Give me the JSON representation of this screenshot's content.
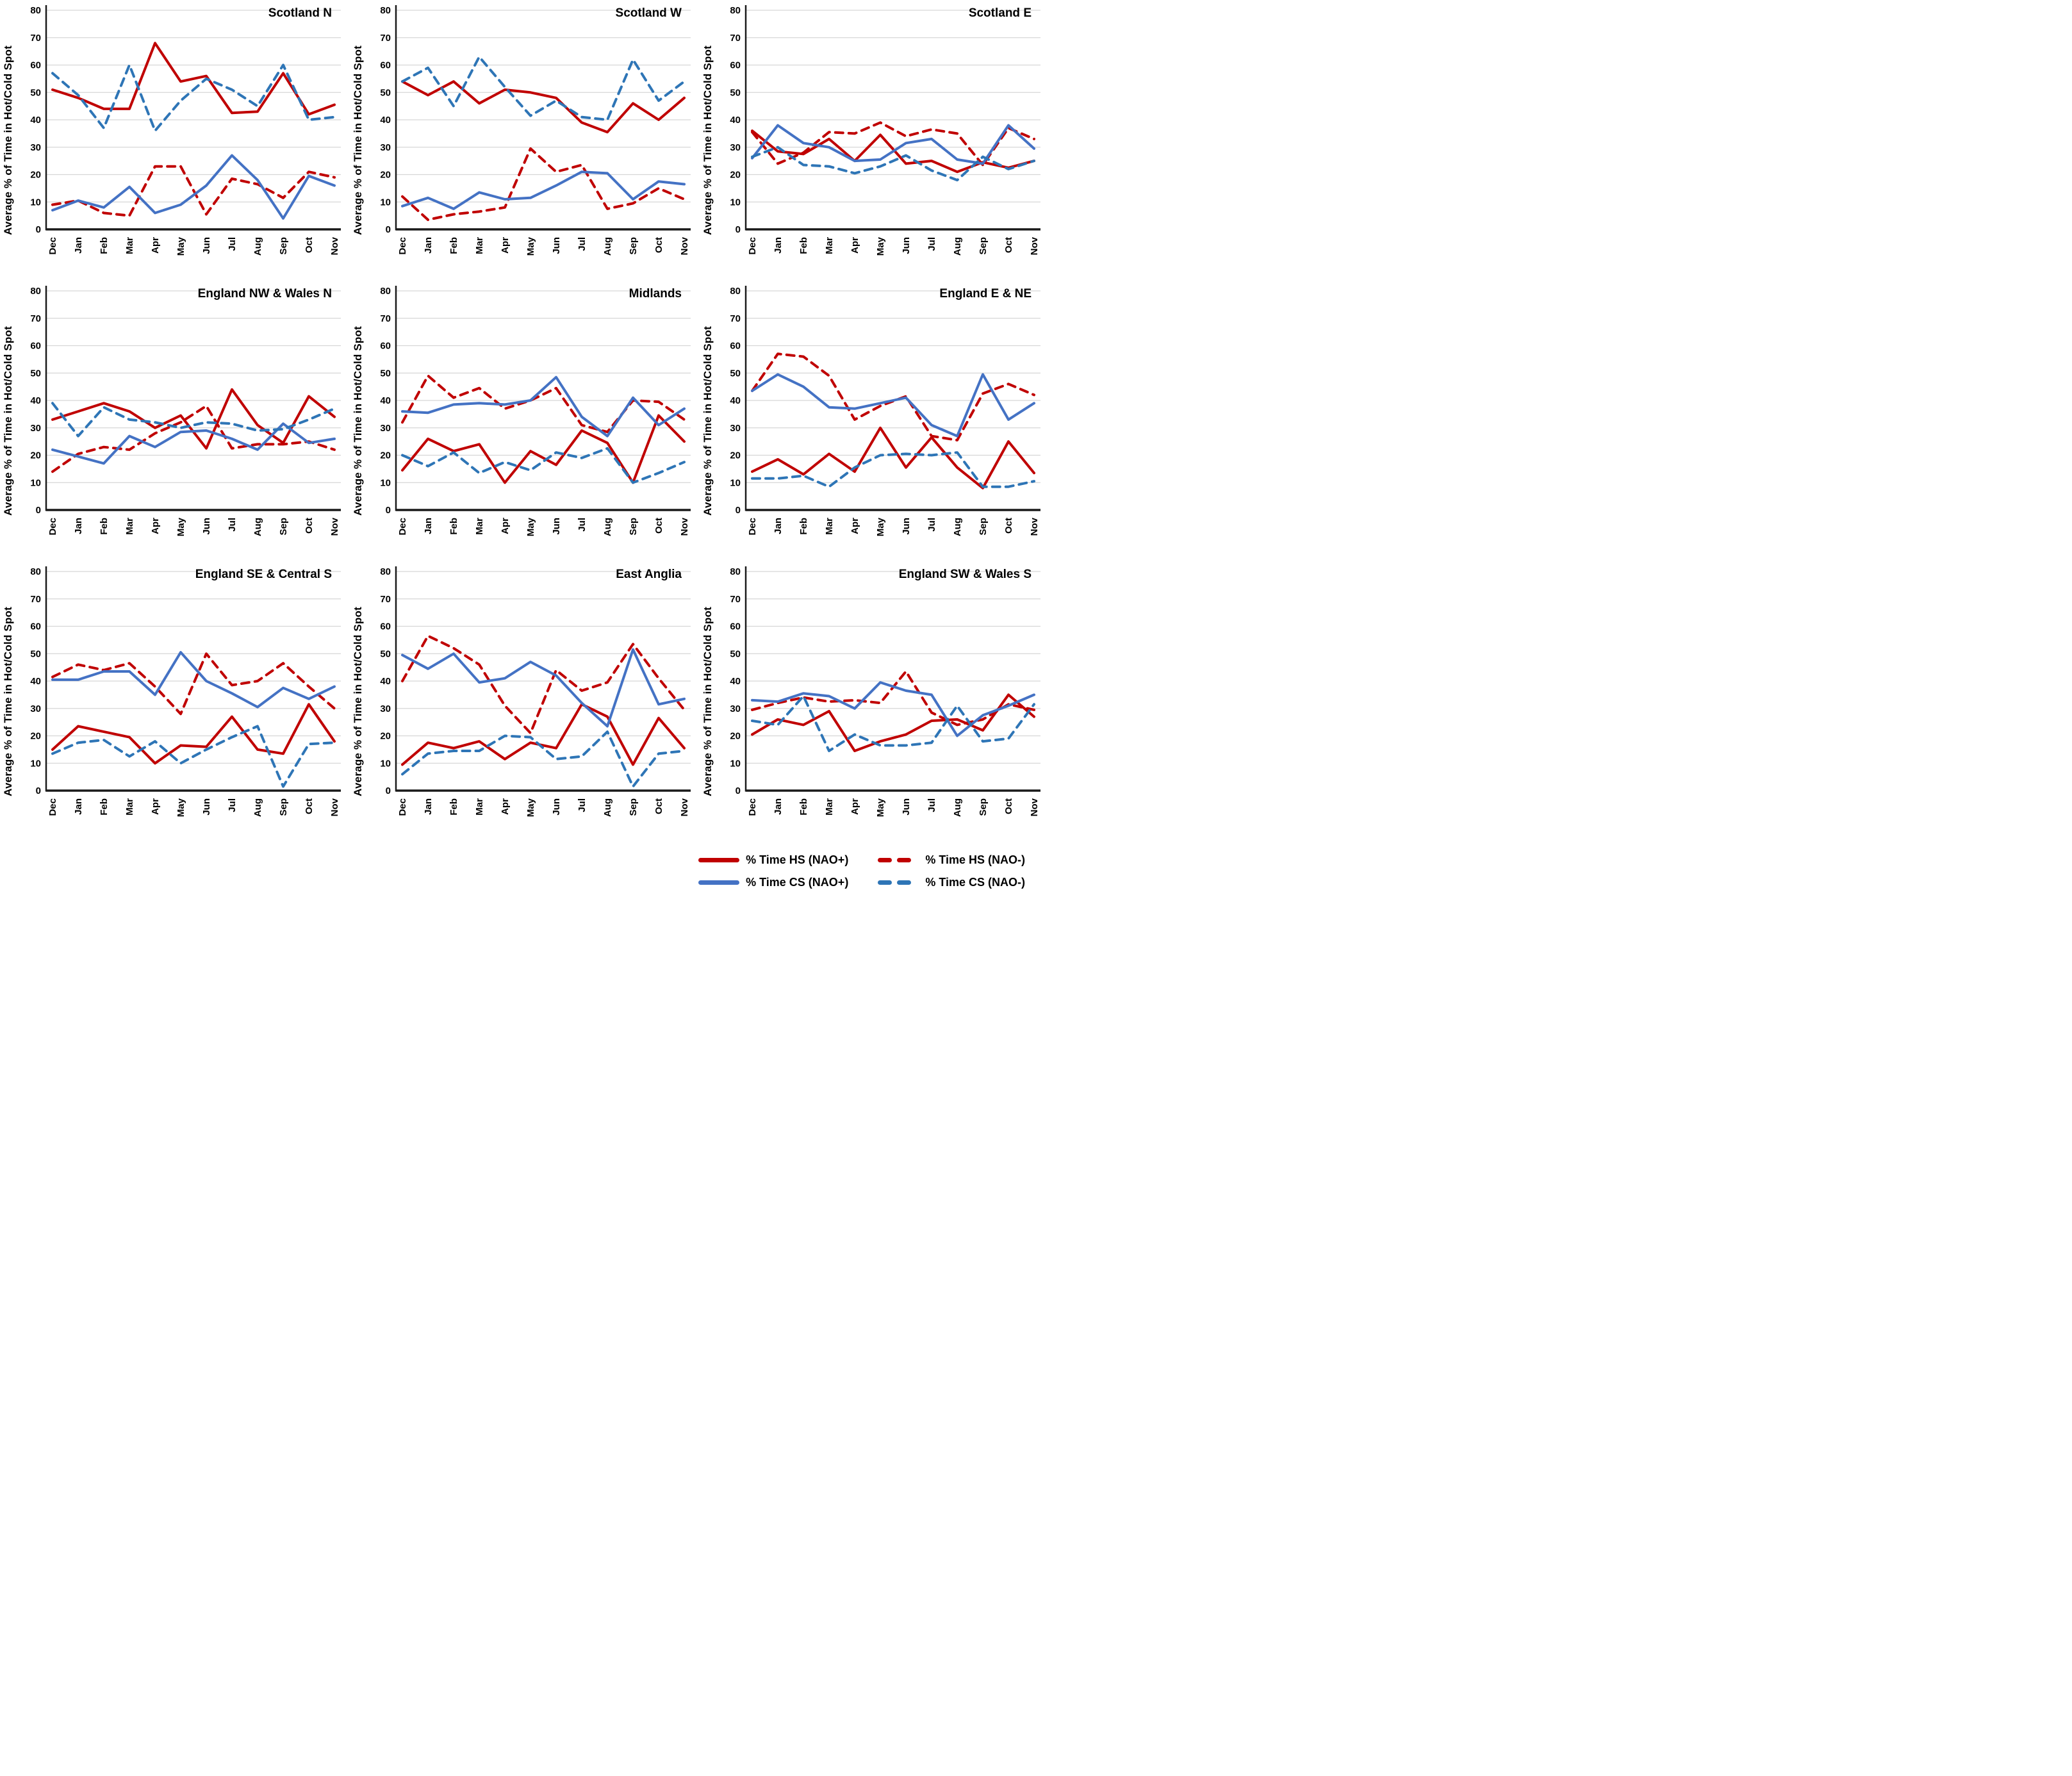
{
  "shared": {
    "y_axis_label": "Average % of Time in Hot/Cold Spot"
  },
  "colors": {
    "hs_solid": "#C00000",
    "hs_dashed": "#C00000",
    "cs_solid": "#4472C4",
    "cs_dashed": "#2E75B6",
    "gridline": "#D6D6D6",
    "axis": "#1a1a1a",
    "text": "#000000"
  },
  "legend": {
    "position": "bottom-right",
    "items": [
      {
        "id": "hs-nao-plus",
        "label": "% Time HS (NAO+)",
        "color": "#C00000",
        "dash": false
      },
      {
        "id": "hs-nao-minus",
        "label": "% Time HS (NAO-)",
        "color": "#C00000",
        "dash": true
      },
      {
        "id": "cs-nao-plus",
        "label": "% Time CS (NAO+)",
        "color": "#4472C4",
        "dash": false
      },
      {
        "id": "cs-nao-minus",
        "label": "% Time CS (NAO-)",
        "color": "#2E75B6",
        "dash": true
      }
    ]
  },
  "axis": {
    "y_min": 0,
    "y_max": 80,
    "y_tick_step": 10,
    "y_ticks": [
      0,
      10,
      20,
      30,
      40,
      50,
      60,
      70,
      80
    ],
    "grid": "on",
    "x_categories": [
      "Dec",
      "Jan",
      "Feb",
      "Mar",
      "Apr",
      "May",
      "Jun",
      "Jul",
      "Aug",
      "Sep",
      "Oct",
      "Nov"
    ]
  },
  "chart_data": [
    {
      "type": "line",
      "title": "Scotland N",
      "categories": [
        "Dec",
        "Jan",
        "Feb",
        "Mar",
        "Apr",
        "May",
        "Jun",
        "Jul",
        "Aug",
        "Sep",
        "Oct",
        "Nov"
      ],
      "ylim": [
        0,
        80
      ],
      "ylabel": "Average % of Time in Hot/Cold Spot",
      "series": [
        {
          "name": "% Time HS (NAO+)",
          "color": "#C00000",
          "dash": false,
          "values": [
            51,
            48,
            44,
            44,
            68,
            54,
            56,
            42.5,
            43,
            57,
            42,
            45.5
          ]
        },
        {
          "name": "% Time HS (NAO-)",
          "color": "#C00000",
          "dash": true,
          "values": [
            9,
            10.5,
            6,
            5,
            23,
            23,
            5.5,
            18.5,
            16.5,
            11.5,
            21,
            19
          ]
        },
        {
          "name": "% Time CS (NAO+)",
          "color": "#4472C4",
          "dash": false,
          "values": [
            7,
            10.5,
            8,
            15.5,
            6,
            9,
            16,
            27,
            18,
            4,
            19.5,
            16
          ]
        },
        {
          "name": "% Time CS (NAO-)",
          "color": "#2E75B6",
          "dash": true,
          "values": [
            57,
            49,
            37,
            60,
            36,
            47,
            55,
            51,
            45,
            60,
            40,
            41
          ]
        }
      ]
    },
    {
      "type": "line",
      "title": "Scotland W",
      "categories": [
        "Dec",
        "Jan",
        "Feb",
        "Mar",
        "Apr",
        "May",
        "Jun",
        "Jul",
        "Aug",
        "Sep",
        "Oct",
        "Nov"
      ],
      "ylim": [
        0,
        80
      ],
      "ylabel": "Average % of Time in Hot/Cold Spot",
      "series": [
        {
          "name": "% Time HS (NAO+)",
          "color": "#C00000",
          "dash": false,
          "values": [
            54,
            49,
            54,
            46,
            51,
            50,
            48,
            39,
            35.5,
            46,
            40,
            48
          ]
        },
        {
          "name": "% Time HS (NAO-)",
          "color": "#C00000",
          "dash": true,
          "values": [
            12,
            3.5,
            5.5,
            6.5,
            8,
            29.5,
            21,
            23.5,
            7.5,
            9.5,
            15,
            11
          ]
        },
        {
          "name": "% Time CS (NAO+)",
          "color": "#4472C4",
          "dash": false,
          "values": [
            8.5,
            11.5,
            7.5,
            13.5,
            11,
            11.5,
            16,
            21,
            20.5,
            11,
            17.5,
            16.5
          ]
        },
        {
          "name": "% Time CS (NAO-)",
          "color": "#2E75B6",
          "dash": true,
          "values": [
            54,
            59,
            45,
            63,
            52,
            41.5,
            47,
            41,
            40,
            62,
            47,
            54
          ]
        }
      ]
    },
    {
      "type": "line",
      "title": "Scotland E",
      "categories": [
        "Dec",
        "Jan",
        "Feb",
        "Mar",
        "Apr",
        "May",
        "Jun",
        "Jul",
        "Aug",
        "Sep",
        "Oct",
        "Nov"
      ],
      "ylim": [
        0,
        80
      ],
      "ylabel": "Average % of Time in Hot/Cold Spot",
      "series": [
        {
          "name": "% Time HS (NAO+)",
          "color": "#C00000",
          "dash": false,
          "values": [
            36,
            28.5,
            27.5,
            33,
            25,
            34.5,
            24,
            25,
            21,
            24.5,
            22.5,
            25
          ]
        },
        {
          "name": "% Time HS (NAO-)",
          "color": "#C00000",
          "dash": true,
          "values": [
            35.5,
            24,
            28,
            35.5,
            35,
            39,
            34,
            36.5,
            35,
            23.5,
            37,
            33
          ]
        },
        {
          "name": "% Time CS (NAO+)",
          "color": "#4472C4",
          "dash": false,
          "values": [
            26,
            38,
            31.5,
            30,
            25,
            25.5,
            31.5,
            33,
            25.5,
            24,
            38,
            29.5
          ]
        },
        {
          "name": "% Time CS (NAO-)",
          "color": "#2E75B6",
          "dash": true,
          "values": [
            26.5,
            30,
            23.5,
            23,
            20.5,
            23,
            27,
            21.5,
            18,
            26.5,
            22,
            25
          ]
        }
      ]
    },
    {
      "type": "line",
      "title": "England NW & Wales N",
      "categories": [
        "Dec",
        "Jan",
        "Feb",
        "Mar",
        "Apr",
        "May",
        "Jun",
        "Jul",
        "Aug",
        "Sep",
        "Oct",
        "Nov"
      ],
      "ylim": [
        0,
        80
      ],
      "ylabel": "Average % of Time in Hot/Cold Spot",
      "series": [
        {
          "name": "% Time HS (NAO+)",
          "color": "#C00000",
          "dash": false,
          "values": [
            33,
            36,
            39,
            36,
            30,
            34.5,
            22.5,
            44,
            31,
            24.5,
            41.5,
            34
          ]
        },
        {
          "name": "% Time HS (NAO-)",
          "color": "#C00000",
          "dash": true,
          "values": [
            14,
            20.5,
            23,
            22,
            28,
            32,
            38,
            22.5,
            24,
            24,
            25,
            22
          ]
        },
        {
          "name": "% Time CS (NAO+)",
          "color": "#4472C4",
          "dash": false,
          "values": [
            22,
            19.5,
            17,
            27,
            23,
            28.5,
            29,
            26,
            22,
            31.5,
            24.5,
            26
          ]
        },
        {
          "name": "% Time CS (NAO-)",
          "color": "#2E75B6",
          "dash": true,
          "values": [
            39,
            27,
            37.5,
            33,
            32,
            30,
            32,
            31.5,
            29,
            29.5,
            33,
            37
          ]
        }
      ]
    },
    {
      "type": "line",
      "title": "Midlands",
      "categories": [
        "Dec",
        "Jan",
        "Feb",
        "Mar",
        "Apr",
        "May",
        "Jun",
        "Jul",
        "Aug",
        "Sep",
        "Oct",
        "Nov"
      ],
      "ylim": [
        0,
        80
      ],
      "ylabel": "Average % of Time in Hot/Cold Spot",
      "series": [
        {
          "name": "% Time HS (NAO+)",
          "color": "#C00000",
          "dash": false,
          "values": [
            14.5,
            26,
            21.5,
            24,
            10,
            21.5,
            16.5,
            29,
            24.5,
            10,
            34.5,
            25
          ]
        },
        {
          "name": "% Time HS (NAO-)",
          "color": "#C00000",
          "dash": true,
          "values": [
            32,
            49,
            41,
            44.5,
            37,
            40,
            44.5,
            31,
            28.5,
            40,
            39.5,
            33
          ]
        },
        {
          "name": "% Time CS (NAO+)",
          "color": "#4472C4",
          "dash": false,
          "values": [
            36,
            35.5,
            38.5,
            39,
            38.5,
            40,
            48.5,
            34,
            27,
            41,
            31,
            37
          ]
        },
        {
          "name": "% Time CS (NAO-)",
          "color": "#2E75B6",
          "dash": true,
          "values": [
            20,
            16,
            21,
            13.5,
            17.5,
            14.5,
            21,
            19,
            22.5,
            10,
            13.5,
            17.5
          ]
        }
      ]
    },
    {
      "type": "line",
      "title": "England E & NE",
      "categories": [
        "Dec",
        "Jan",
        "Feb",
        "Mar",
        "Apr",
        "May",
        "Jun",
        "Jul",
        "Aug",
        "Sep",
        "Oct",
        "Nov"
      ],
      "ylim": [
        0,
        80
      ],
      "ylabel": "Average % of Time in Hot/Cold Spot",
      "series": [
        {
          "name": "% Time HS (NAO+)",
          "color": "#C00000",
          "dash": false,
          "values": [
            14,
            18.5,
            13,
            20.5,
            14,
            30,
            15.5,
            26.5,
            15.5,
            8,
            25,
            13.5
          ]
        },
        {
          "name": "% Time HS (NAO-)",
          "color": "#C00000",
          "dash": true,
          "values": [
            43.5,
            57,
            56,
            49,
            33,
            38,
            41.5,
            27,
            25.5,
            42.5,
            46,
            42
          ]
        },
        {
          "name": "% Time CS (NAO+)",
          "color": "#4472C4",
          "dash": false,
          "values": [
            43.5,
            49.5,
            45,
            37.5,
            37,
            39,
            41,
            31,
            27,
            49.5,
            33,
            39
          ]
        },
        {
          "name": "% Time CS (NAO-)",
          "color": "#2E75B6",
          "dash": true,
          "values": [
            11.5,
            11.5,
            12.5,
            8.5,
            15.5,
            20,
            20.5,
            20,
            21,
            8.5,
            8.5,
            10.5
          ]
        }
      ]
    },
    {
      "type": "line",
      "title": "England SE & Central S",
      "categories": [
        "Dec",
        "Jan",
        "Feb",
        "Mar",
        "Apr",
        "May",
        "Jun",
        "Jul",
        "Aug",
        "Sep",
        "Oct",
        "Nov"
      ],
      "ylim": [
        0,
        80
      ],
      "ylabel": "Average % of Time in Hot/Cold Spot",
      "series": [
        {
          "name": "% Time HS (NAO+)",
          "color": "#C00000",
          "dash": false,
          "values": [
            15,
            23.5,
            21.5,
            19.5,
            10,
            16.5,
            16,
            27,
            15,
            13.5,
            31.5,
            18
          ]
        },
        {
          "name": "% Time HS (NAO-)",
          "color": "#C00000",
          "dash": true,
          "values": [
            41.5,
            46,
            44,
            46.5,
            38,
            28,
            50,
            38.5,
            40,
            46.5,
            38,
            30
          ]
        },
        {
          "name": "% Time CS (NAO+)",
          "color": "#4472C4",
          "dash": false,
          "values": [
            40.5,
            40.5,
            43.5,
            43.5,
            35,
            50.5,
            40,
            35.5,
            30.5,
            37.5,
            33.5,
            38
          ]
        },
        {
          "name": "% Time CS (NAO-)",
          "color": "#2E75B6",
          "dash": true,
          "values": [
            13.5,
            17.5,
            18.5,
            12.5,
            18,
            10,
            15,
            19.5,
            23.5,
            1.5,
            17,
            17.5
          ]
        }
      ]
    },
    {
      "type": "line",
      "title": "East Anglia",
      "categories": [
        "Dec",
        "Jan",
        "Feb",
        "Mar",
        "Apr",
        "May",
        "Jun",
        "Jul",
        "Aug",
        "Sep",
        "Oct",
        "Nov"
      ],
      "ylim": [
        0,
        80
      ],
      "ylabel": "Average % of Time in Hot/Cold Spot",
      "series": [
        {
          "name": "% Time HS (NAO+)",
          "color": "#C00000",
          "dash": false,
          "values": [
            9.5,
            17.5,
            15.5,
            18,
            11.5,
            17.5,
            15.5,
            31.5,
            27,
            9.5,
            26.5,
            15.5
          ]
        },
        {
          "name": "% Time HS (NAO-)",
          "color": "#C00000",
          "dash": true,
          "values": [
            40,
            56.5,
            52,
            46,
            31,
            21,
            44,
            36.5,
            39.5,
            53.5,
            41,
            29.5
          ]
        },
        {
          "name": "% Time CS (NAO+)",
          "color": "#4472C4",
          "dash": false,
          "values": [
            49.5,
            44.5,
            50,
            39.5,
            41,
            47,
            42,
            32,
            23.5,
            51.5,
            31.5,
            33.5
          ]
        },
        {
          "name": "% Time CS (NAO-)",
          "color": "#2E75B6",
          "dash": true,
          "values": [
            6,
            13.5,
            14.5,
            14.5,
            20,
            19.5,
            11.5,
            12.5,
            21.5,
            1.5,
            13.5,
            14.5
          ]
        }
      ]
    },
    {
      "type": "line",
      "title": "England SW & Wales S",
      "categories": [
        "Dec",
        "Jan",
        "Feb",
        "Mar",
        "Apr",
        "May",
        "Jun",
        "Jul",
        "Aug",
        "Sep",
        "Oct",
        "Nov"
      ],
      "ylim": [
        0,
        80
      ],
      "ylabel": "Average % of Time in Hot/Cold Spot",
      "series": [
        {
          "name": "% Time HS (NAO+)",
          "color": "#C00000",
          "dash": false,
          "values": [
            20.5,
            26,
            24,
            29,
            14.5,
            18,
            20.5,
            25.5,
            26,
            22,
            35,
            27
          ]
        },
        {
          "name": "% Time HS (NAO-)",
          "color": "#C00000",
          "dash": true,
          "values": [
            29.5,
            32,
            34,
            32.5,
            33,
            32,
            43.5,
            28.5,
            24,
            26,
            31.5,
            29.5
          ]
        },
        {
          "name": "% Time CS (NAO+)",
          "color": "#4472C4",
          "dash": false,
          "values": [
            33,
            32.5,
            35.5,
            34.5,
            30,
            39.5,
            36.5,
            35,
            20,
            27.5,
            31,
            35
          ]
        },
        {
          "name": "% Time CS (NAO-)",
          "color": "#2E75B6",
          "dash": true,
          "values": [
            25.5,
            24,
            34.5,
            14.5,
            20.5,
            16.5,
            16.5,
            17.5,
            31,
            18,
            19,
            31.5
          ]
        }
      ]
    }
  ]
}
